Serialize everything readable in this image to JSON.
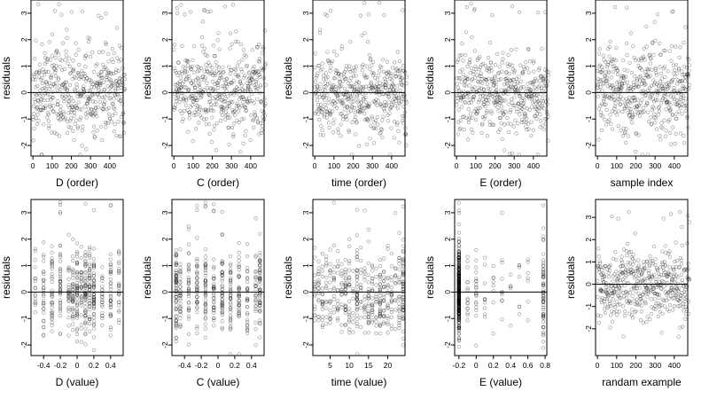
{
  "chart_data": [
    {
      "type": "scatter",
      "xlabel": "D (order)",
      "ylabel": "residuals",
      "xlim": [
        -10,
        470
      ],
      "ylim": [
        -2.4,
        3.5
      ],
      "xticks": [
        0,
        100,
        200,
        300,
        400
      ],
      "yticks": [
        -2,
        -1,
        0,
        1,
        2,
        3
      ],
      "hline": 0,
      "n": 480,
      "seed": 11,
      "pattern": "order"
    },
    {
      "type": "scatter",
      "xlabel": "C (order)",
      "ylabel": "residuals",
      "xlim": [
        -10,
        470
      ],
      "ylim": [
        -2.4,
        3.5
      ],
      "xticks": [
        0,
        100,
        200,
        300,
        400
      ],
      "yticks": [
        -2,
        -1,
        0,
        1,
        2,
        3
      ],
      "hline": 0,
      "n": 480,
      "seed": 23,
      "pattern": "order"
    },
    {
      "type": "scatter",
      "xlabel": "time (order)",
      "ylabel": "residuals",
      "xlim": [
        -10,
        470
      ],
      "ylim": [
        -2.4,
        3.5
      ],
      "xticks": [
        0,
        100,
        200,
        300,
        400
      ],
      "yticks": [
        -2,
        -1,
        0,
        1,
        2,
        3
      ],
      "hline": 0,
      "n": 480,
      "seed": 37,
      "pattern": "order"
    },
    {
      "type": "scatter",
      "xlabel": "E (order)",
      "ylabel": "residuals",
      "xlim": [
        -10,
        470
      ],
      "ylim": [
        -2.4,
        3.5
      ],
      "xticks": [
        0,
        100,
        200,
        300,
        400
      ],
      "yticks": [
        -2,
        -1,
        0,
        1,
        2,
        3
      ],
      "hline": 0,
      "n": 480,
      "seed": 41,
      "pattern": "order"
    },
    {
      "type": "scatter",
      "xlabel": "sample index",
      "ylabel": "residuals",
      "xlim": [
        -10,
        470
      ],
      "ylim": [
        -2.4,
        3.5
      ],
      "xticks": [
        0,
        100,
        200,
        300,
        400
      ],
      "yticks": [
        -2,
        -1,
        0,
        1,
        2,
        3
      ],
      "hline": 0,
      "n": 480,
      "seed": 53,
      "pattern": "order"
    },
    {
      "type": "scatter",
      "xlabel": "D (value)",
      "ylabel": "residuals",
      "xlim": [
        -0.55,
        0.55
      ],
      "ylim": [
        -2.4,
        3.5
      ],
      "xticks": [
        -0.4,
        -0.2,
        0.0,
        0.2,
        0.4
      ],
      "yticks": [
        -2,
        -1,
        0,
        1,
        2,
        3
      ],
      "hline": 0,
      "n": 480,
      "seed": 61,
      "pattern": "discrete",
      "levels": [
        -0.5,
        -0.4,
        -0.3,
        -0.2,
        -0.1,
        -0.05,
        0.0,
        0.05,
        0.1,
        0.15,
        0.2,
        0.3,
        0.4,
        0.5
      ],
      "weights": [
        2,
        3,
        3,
        4,
        4,
        4,
        5,
        4,
        6,
        4,
        4,
        3,
        3,
        2
      ]
    },
    {
      "type": "scatter",
      "xlabel": "C (value)",
      "ylabel": "residuals",
      "xlim": [
        -0.55,
        0.55
      ],
      "ylim": [
        -2.4,
        3.5
      ],
      "xticks": [
        -0.4,
        -0.2,
        0.0,
        0.2,
        0.4
      ],
      "yticks": [
        -2,
        -1,
        0,
        1,
        2,
        3
      ],
      "hline": 0,
      "n": 480,
      "seed": 71,
      "pattern": "discrete",
      "levels": [
        -0.5,
        -0.45,
        -0.35,
        -0.25,
        -0.15,
        -0.05,
        0.05,
        0.15,
        0.25,
        0.35,
        0.45,
        0.5
      ],
      "weights": [
        5,
        3,
        3,
        3,
        3,
        3,
        3,
        3,
        3,
        3,
        3,
        5
      ]
    },
    {
      "type": "scatter",
      "xlabel": "time (value)",
      "ylabel": "residuals",
      "xlim": [
        0.5,
        24.5
      ],
      "ylim": [
        -2.4,
        3.5
      ],
      "xticks": [
        5,
        10,
        15,
        20
      ],
      "yticks": [
        -2,
        -1,
        0,
        1,
        2,
        3
      ],
      "hline": 0,
      "n": 480,
      "seed": 83,
      "pattern": "discrete",
      "levels": [
        1,
        2,
        3,
        4,
        5,
        6,
        7,
        8,
        9,
        10,
        11,
        12,
        13,
        14,
        15,
        16,
        17,
        18,
        19,
        20,
        21,
        22,
        23,
        24
      ],
      "weights": [
        2,
        2,
        2,
        2,
        2,
        2,
        2,
        2,
        2,
        2,
        2,
        5,
        2,
        2,
        2,
        2,
        2,
        4,
        2,
        2,
        2,
        2,
        3,
        4
      ]
    },
    {
      "type": "scatter",
      "xlabel": "E (value)",
      "ylabel": "residuals",
      "xlim": [
        -0.25,
        0.82
      ],
      "ylim": [
        -2.4,
        3.5
      ],
      "xticks": [
        -0.2,
        0.0,
        0.2,
        0.4,
        0.6,
        0.8
      ],
      "yticks": [
        -2,
        -1,
        0,
        1,
        2,
        3
      ],
      "hline": 0,
      "n": 480,
      "seed": 97,
      "pattern": "discrete",
      "levels": [
        -0.2,
        -0.1,
        0.0,
        0.1,
        0.2,
        0.3,
        0.4,
        0.5,
        0.6,
        0.78
      ],
      "weights": [
        40,
        2,
        2,
        1,
        1,
        1,
        1,
        1,
        1,
        8
      ]
    },
    {
      "type": "scatter",
      "xlabel": "randam example",
      "ylabel": "residuals",
      "xlim": [
        -10,
        470
      ],
      "ylim": [
        -3.2,
        3.8
      ],
      "xticks": [
        0,
        100,
        200,
        300,
        400
      ],
      "yticks": [
        -2,
        -1,
        0,
        1,
        2,
        3
      ],
      "hline": 0,
      "n": 480,
      "seed": 101,
      "pattern": "order"
    }
  ]
}
